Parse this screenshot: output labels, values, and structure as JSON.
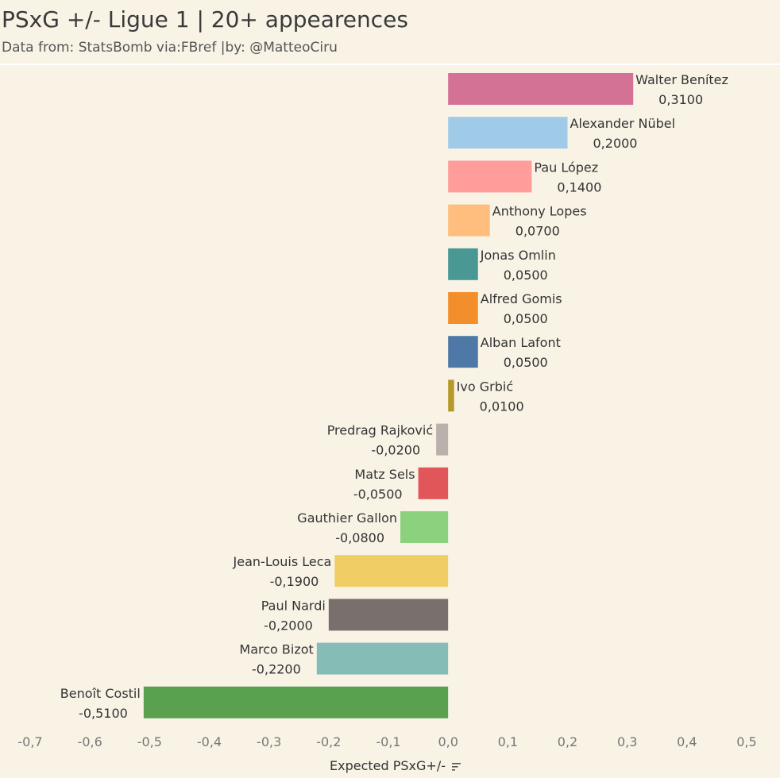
{
  "header": {
    "title": "PSxG +/- Ligue 1 | 20+ appearences",
    "subtitle": "Data from: StatsBomb via:FBref |by: @MatteoCiru"
  },
  "axis": {
    "sort_icon": "sort-descending-icon"
  },
  "chart_data": {
    "type": "bar",
    "orientation": "horizontal",
    "title": "PSxG +/- Ligue 1 | 20+ appearences",
    "subtitle": "Data from: StatsBomb via:FBref |by: @MatteoCiru",
    "xlabel": "Expected PSxG+/-",
    "ylabel": "",
    "xlim": [
      -0.7,
      0.5
    ],
    "xticks": [
      -0.7,
      -0.6,
      -0.5,
      -0.4,
      -0.3,
      -0.2,
      -0.1,
      0.0,
      0.1,
      0.2,
      0.3,
      0.4,
      0.5
    ],
    "xtick_labels": [
      "-0,7",
      "-0,6",
      "-0,5",
      "-0,4",
      "-0,3",
      "-0,2",
      "-0,1",
      "0,0",
      "0,1",
      "0,2",
      "0,3",
      "0,4",
      "0,5"
    ],
    "grid": false,
    "categories": [
      "Walter Benítez",
      "Alexander Nübel",
      "Pau López",
      "Anthony Lopes",
      "Jonas Omlin",
      "Alfred Gomis",
      "Alban Lafont",
      "Ivo Grbić",
      "Predrag Rajković",
      "Matz Sels",
      "Gauthier Gallon",
      "Jean-Louis Leca",
      "Paul Nardi",
      "Marco Bizot",
      "Benoît Costil"
    ],
    "values": [
      0.31,
      0.2,
      0.14,
      0.07,
      0.05,
      0.05,
      0.05,
      0.01,
      -0.02,
      -0.05,
      -0.08,
      -0.19,
      -0.2,
      -0.22,
      -0.51
    ],
    "value_labels": [
      "0,3100",
      "0,2000",
      "0,1400",
      "0,0700",
      "0,0500",
      "0,0500",
      "0,0500",
      "0,0100",
      "-0,0200",
      "-0,0500",
      "-0,0800",
      "-0,1900",
      "-0,2000",
      "-0,2200",
      "-0,5100"
    ],
    "colors": [
      "#d47295",
      "#a0cbe8",
      "#ff9d9a",
      "#ffbe7d",
      "#499894",
      "#f28e2b",
      "#4e79a7",
      "#b6992d",
      "#bab0ac",
      "#e15759",
      "#8cd17d",
      "#f1ce63",
      "#79706e",
      "#86bcb6",
      "#59a14f"
    ]
  }
}
